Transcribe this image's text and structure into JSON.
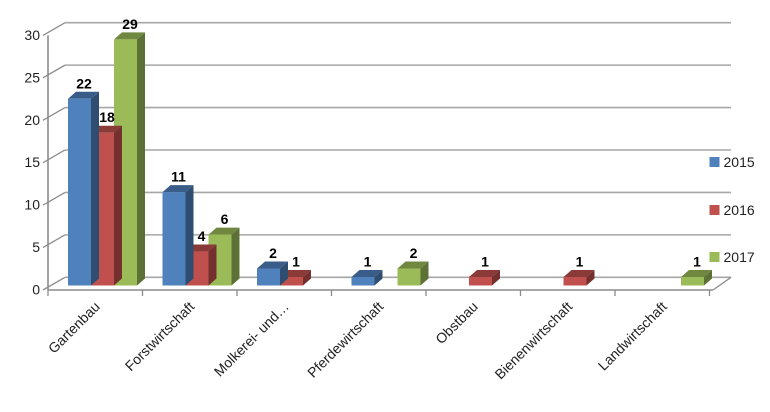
{
  "chart_data": {
    "type": "bar",
    "variant": "3d-clustered-column",
    "title": "",
    "categories": [
      "Gartenbau",
      "Forstwirtschaft",
      "Molkerei- und…",
      "Pferdewirtschaft",
      "Obstbau",
      "Bienenwirtschaft",
      "Landwirtschaft"
    ],
    "series": [
      {
        "name": "2015",
        "color": "#4F81BD",
        "top_color": "#395D88",
        "side_color": "#2F4D71",
        "values": [
          22,
          11,
          2,
          1,
          0,
          0,
          0
        ]
      },
      {
        "name": "2016",
        "color": "#C0504D",
        "top_color": "#8A3A37",
        "side_color": "#73302E",
        "values": [
          18,
          4,
          1,
          0,
          1,
          1,
          0
        ]
      },
      {
        "name": "2017",
        "color": "#9BBB59",
        "top_color": "#708740",
        "side_color": "#5D7035",
        "values": [
          29,
          6,
          0,
          2,
          0,
          0,
          1
        ]
      }
    ],
    "ylim": [
      0,
      30
    ],
    "yticks": [
      0,
      5,
      10,
      15,
      20,
      25,
      30
    ],
    "grid": true,
    "data_labels": true,
    "legend_position": "right",
    "colors": {
      "grid": "#A6A6A6",
      "axis": "#8C8C8C",
      "data_label": "#000000",
      "tick_text": "#1F1F1F",
      "background": "#FFFFFF"
    }
  }
}
